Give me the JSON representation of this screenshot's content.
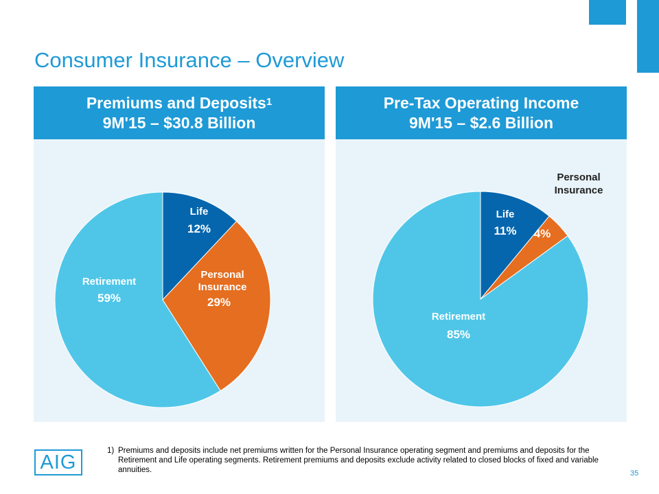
{
  "title": "Consumer Insurance – Overview",
  "colors": {
    "accent": "#1e9ad6",
    "panel_bg": "#e9f4fa",
    "retirement": "#4fc6e8",
    "life": "#0566ad",
    "personal_insurance": "#e56e20"
  },
  "chart_data": [
    {
      "type": "pie",
      "title": "Premiums and Deposits",
      "title_superscript": "1",
      "subtitle": "9M'15 – $30.8 Billion",
      "slices": [
        {
          "label": "Life",
          "value": 12,
          "value_label": "12%",
          "color": "#0566ad"
        },
        {
          "label": "Personal Insurance",
          "value": 29,
          "value_label": "29%",
          "color": "#e56e20"
        },
        {
          "label": "Retirement",
          "value": 59,
          "value_label": "59%",
          "color": "#4fc6e8"
        }
      ]
    },
    {
      "type": "pie",
      "title": "Pre-Tax Operating Income",
      "title_superscript": "",
      "subtitle": "9M'15 – $2.6 Billion",
      "slices": [
        {
          "label": "Life",
          "value": 11,
          "value_label": "11%",
          "color": "#0566ad"
        },
        {
          "label": "Personal Insurance",
          "value": 4,
          "value_label": "4%",
          "color": "#e56e20"
        },
        {
          "label": "Retirement",
          "value": 85,
          "value_label": "85%",
          "color": "#4fc6e8"
        }
      ]
    }
  ],
  "footnote": {
    "number": "1)",
    "text": "Premiums and deposits include net premiums written for the Personal Insurance operating segment and premiums and deposits for the Retirement and Life operating segments. Retirement premiums and deposits exclude activity related to closed blocks of fixed and variable annuities."
  },
  "logo_text": "AIG",
  "page_number": "35"
}
